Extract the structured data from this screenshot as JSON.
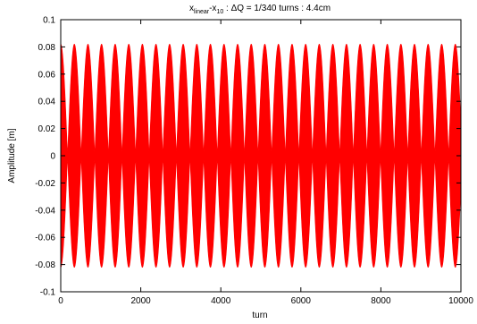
{
  "chart_data": {
    "type": "line",
    "title": {
      "x_main": "x",
      "x_sub": "linear",
      "minus": "-x",
      "sub2": "10",
      "rest": " : ΔQ = 1/340 turns : 4.4cm"
    },
    "xlabel": "turn",
    "ylabel": "Amplitude [m]",
    "xlim": [
      0,
      10000
    ],
    "ylim": [
      -0.1,
      0.1
    ],
    "x_ticks": [
      0,
      2000,
      4000,
      6000,
      8000,
      10000
    ],
    "x_tick_labels": [
      "0",
      "2000",
      "4000",
      "6000",
      "8000",
      "10000"
    ],
    "y_ticks": [
      -0.1,
      -0.08,
      -0.06,
      -0.04,
      -0.02,
      0,
      0.02,
      0.04,
      0.06,
      0.08,
      0.1
    ],
    "y_tick_labels": [
      "-0.1",
      "-0.08",
      "-0.06",
      "-0.04",
      "-0.02",
      "0",
      "0.02",
      "0.04",
      "0.06",
      "0.08",
      "0.1"
    ],
    "grid": false,
    "series": [
      {
        "color": "#ff0000",
        "amplitude": 0.082,
        "beat_period_turns": 340,
        "start_turn": 0,
        "end_turn": 10000
      }
    ]
  }
}
